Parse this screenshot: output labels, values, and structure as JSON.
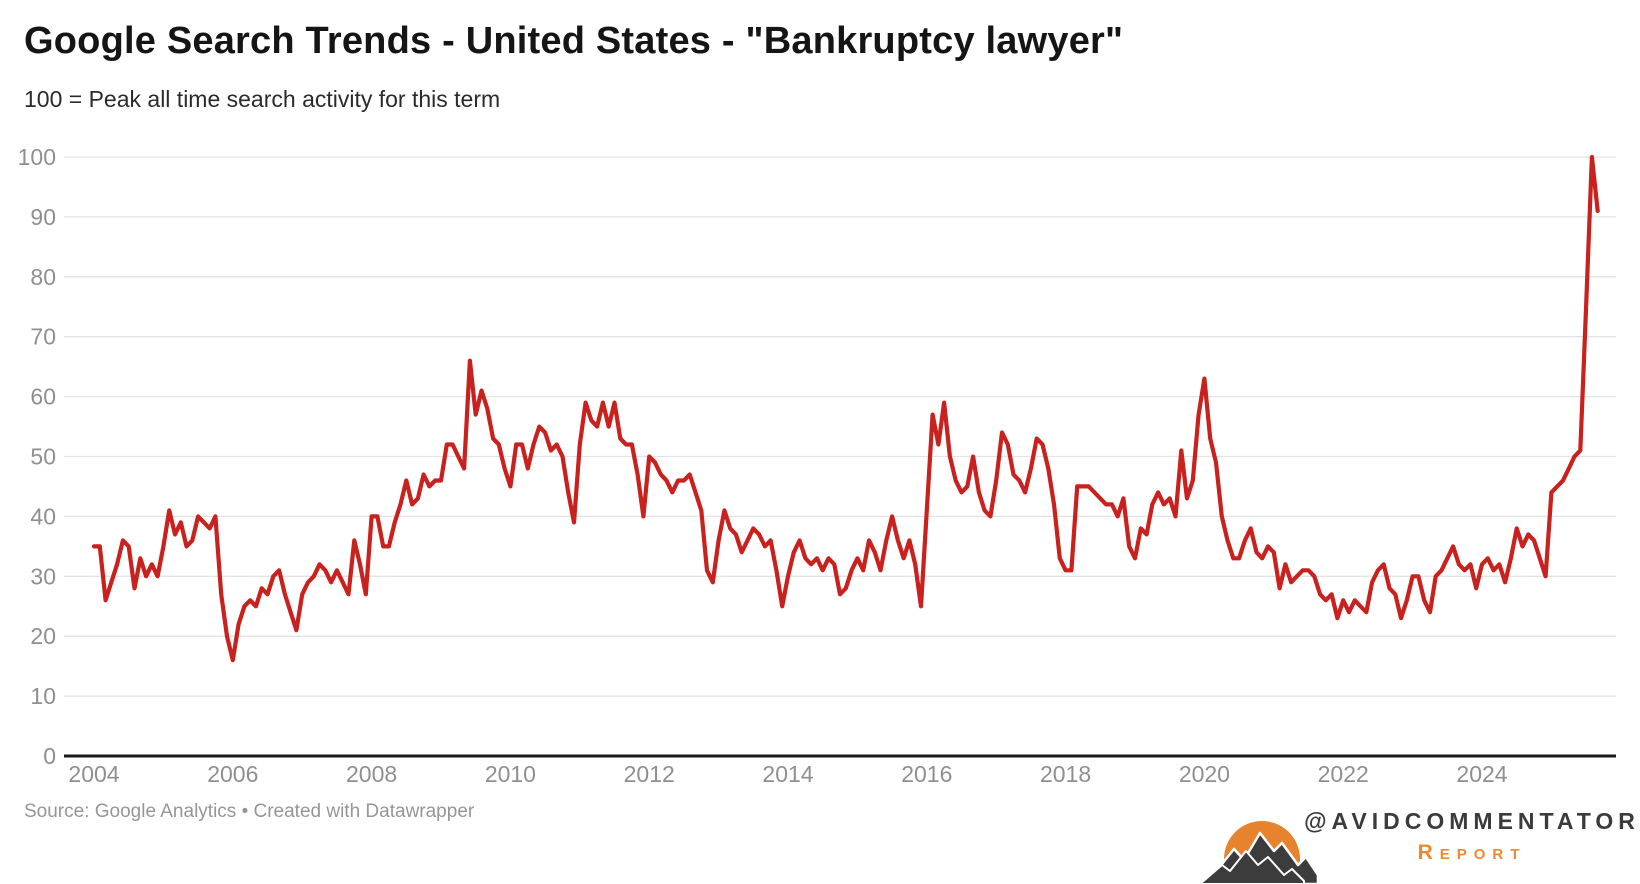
{
  "header": {
    "title": "Google Search Trends - United States - \"Bankruptcy lawyer\"",
    "subtitle": "100 = Peak all time search activity for this term"
  },
  "footer": {
    "source": "Source: Google Analytics • Created with Datawrapper",
    "brand_handle": "@AVIDCOMMENTATOR",
    "brand_sub": "Report",
    "logo": "sun-over-mountains-icon",
    "logo_colors": {
      "sun": "#e8832d",
      "mountains": "#3c3c3c",
      "snow": "#ffffff"
    }
  },
  "chart_data": {
    "type": "line",
    "title": "Google Search Trends - United States - \"Bankruptcy lawyer\"",
    "subtitle": "100 = Peak all time search activity for this term",
    "series_name": "Bankruptcy lawyer search interest",
    "frequency": "monthly",
    "start": "2004-01",
    "end": "2025-09",
    "values": [
      35,
      35,
      26,
      29,
      32,
      36,
      35,
      28,
      33,
      30,
      32,
      30,
      35,
      41,
      37,
      39,
      35,
      36,
      40,
      39,
      38,
      40,
      27,
      20,
      16,
      22,
      25,
      26,
      25,
      28,
      27,
      30,
      31,
      27,
      24,
      21,
      27,
      29,
      30,
      32,
      31,
      29,
      31,
      29,
      27,
      36,
      32,
      27,
      40,
      40,
      35,
      35,
      39,
      42,
      46,
      42,
      43,
      47,
      45,
      46,
      46,
      52,
      52,
      50,
      48,
      66,
      57,
      61,
      58,
      53,
      52,
      48,
      45,
      52,
      52,
      48,
      52,
      55,
      54,
      51,
      52,
      50,
      44,
      39,
      52,
      59,
      56,
      55,
      59,
      55,
      59,
      53,
      52,
      52,
      47,
      40,
      50,
      49,
      47,
      46,
      44,
      46,
      46,
      47,
      44,
      41,
      31,
      29,
      36,
      41,
      38,
      37,
      34,
      36,
      38,
      37,
      35,
      36,
      31,
      25,
      30,
      34,
      36,
      33,
      32,
      33,
      31,
      33,
      32,
      27,
      28,
      31,
      33,
      31,
      36,
      34,
      31,
      36,
      40,
      36,
      33,
      36,
      32,
      25,
      41,
      57,
      52,
      59,
      50,
      46,
      44,
      45,
      50,
      44,
      41,
      40,
      46,
      54,
      52,
      47,
      46,
      44,
      48,
      53,
      52,
      48,
      42,
      33,
      31,
      31,
      45,
      45,
      45,
      44,
      43,
      42,
      42,
      40,
      43,
      35,
      33,
      38,
      37,
      42,
      44,
      42,
      43,
      40,
      51,
      43,
      46,
      57,
      63,
      53,
      49,
      40,
      36,
      33,
      33,
      36,
      38,
      34,
      33,
      35,
      34,
      28,
      32,
      29,
      30,
      31,
      31,
      30,
      27,
      26,
      27,
      23,
      26,
      24,
      26,
      25,
      24,
      29,
      31,
      32,
      28,
      27,
      23,
      26,
      30,
      30,
      26,
      24,
      30,
      31,
      33,
      35,
      32,
      31,
      32,
      28,
      32,
      33,
      31,
      32,
      29,
      33,
      38,
      35,
      37,
      36,
      33,
      30,
      44,
      45,
      46,
      48,
      50,
      51,
      75,
      100,
      91
    ],
    "x_tick_labels": [
      "2004",
      "2006",
      "2008",
      "2010",
      "2012",
      "2014",
      "2016",
      "2018",
      "2020",
      "2022",
      "2024"
    ],
    "y_ticks": [
      0,
      10,
      20,
      30,
      40,
      50,
      60,
      70,
      80,
      90,
      100
    ],
    "ylim": [
      0,
      100
    ],
    "grid": true,
    "legend": "none",
    "colors": {
      "line": "#c9211e",
      "grid": "#e3e3e3",
      "axis": "#1a1a1a",
      "tick_label": "#8f8f8f"
    }
  }
}
